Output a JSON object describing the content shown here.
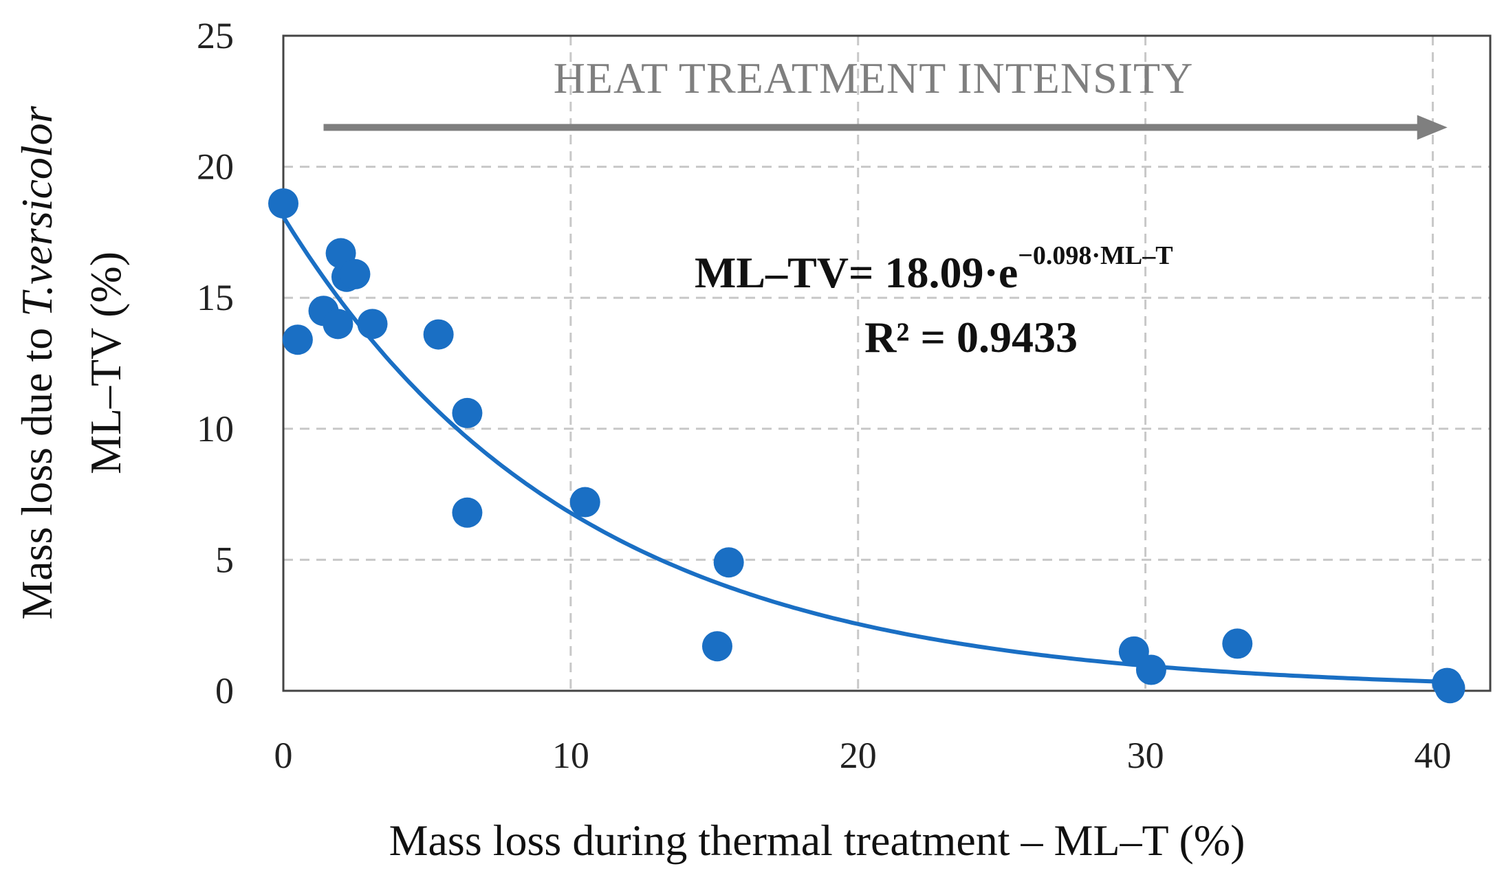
{
  "chart_data": {
    "type": "scatter",
    "title": "",
    "xlabel": "Mass loss during thermal treatment – ML–T (%)",
    "ylabel_line1_prefix": "Mass loss due to ",
    "ylabel_line1_species": "T.versicolor",
    "ylabel_line2": "ML–TV (%)",
    "xlim": [
      0,
      42
    ],
    "ylim": [
      0,
      25
    ],
    "x_ticks": [
      0,
      10,
      20,
      30,
      40
    ],
    "y_ticks": [
      0,
      5,
      10,
      15,
      20,
      25
    ],
    "x_tick_labels": [
      "0",
      "10",
      "20",
      "30",
      "40"
    ],
    "y_tick_labels": [
      "0",
      "5",
      "10",
      "15",
      "20",
      "25"
    ],
    "grid": true,
    "series": [
      {
        "name": "ML–TV",
        "color": "#1a6fc4",
        "points": [
          {
            "x": 0.0,
            "y": 18.6
          },
          {
            "x": 0.5,
            "y": 13.4
          },
          {
            "x": 1.4,
            "y": 14.5
          },
          {
            "x": 1.9,
            "y": 14.0
          },
          {
            "x": 2.0,
            "y": 16.7
          },
          {
            "x": 2.2,
            "y": 15.8
          },
          {
            "x": 2.5,
            "y": 15.9
          },
          {
            "x": 3.1,
            "y": 14.0
          },
          {
            "x": 5.4,
            "y": 13.6
          },
          {
            "x": 6.4,
            "y": 10.6
          },
          {
            "x": 6.4,
            "y": 6.8
          },
          {
            "x": 10.5,
            "y": 7.2
          },
          {
            "x": 15.1,
            "y": 1.7
          },
          {
            "x": 15.5,
            "y": 4.9
          },
          {
            "x": 29.6,
            "y": 1.5
          },
          {
            "x": 30.2,
            "y": 0.8
          },
          {
            "x": 33.2,
            "y": 1.8
          },
          {
            "x": 40.5,
            "y": 0.3
          },
          {
            "x": 40.6,
            "y": 0.1
          }
        ]
      }
    ],
    "fit": {
      "type": "exponential",
      "a": 18.09,
      "b": -0.098,
      "x_range": [
        0,
        40.6
      ],
      "color": "#1a6fc4"
    },
    "annotations": {
      "arrow_label": "HEAT TREATMENT INTENSITY",
      "arrow_x_range": [
        1.4,
        39.6
      ],
      "arrow_y": 21.5,
      "arrow_color": "#7f7f7f",
      "equation_lhs": "ML–TV= 18.09·e",
      "equation_exponent": "−0.098·ML–T",
      "r_squared": "R² = 0.9433"
    }
  }
}
